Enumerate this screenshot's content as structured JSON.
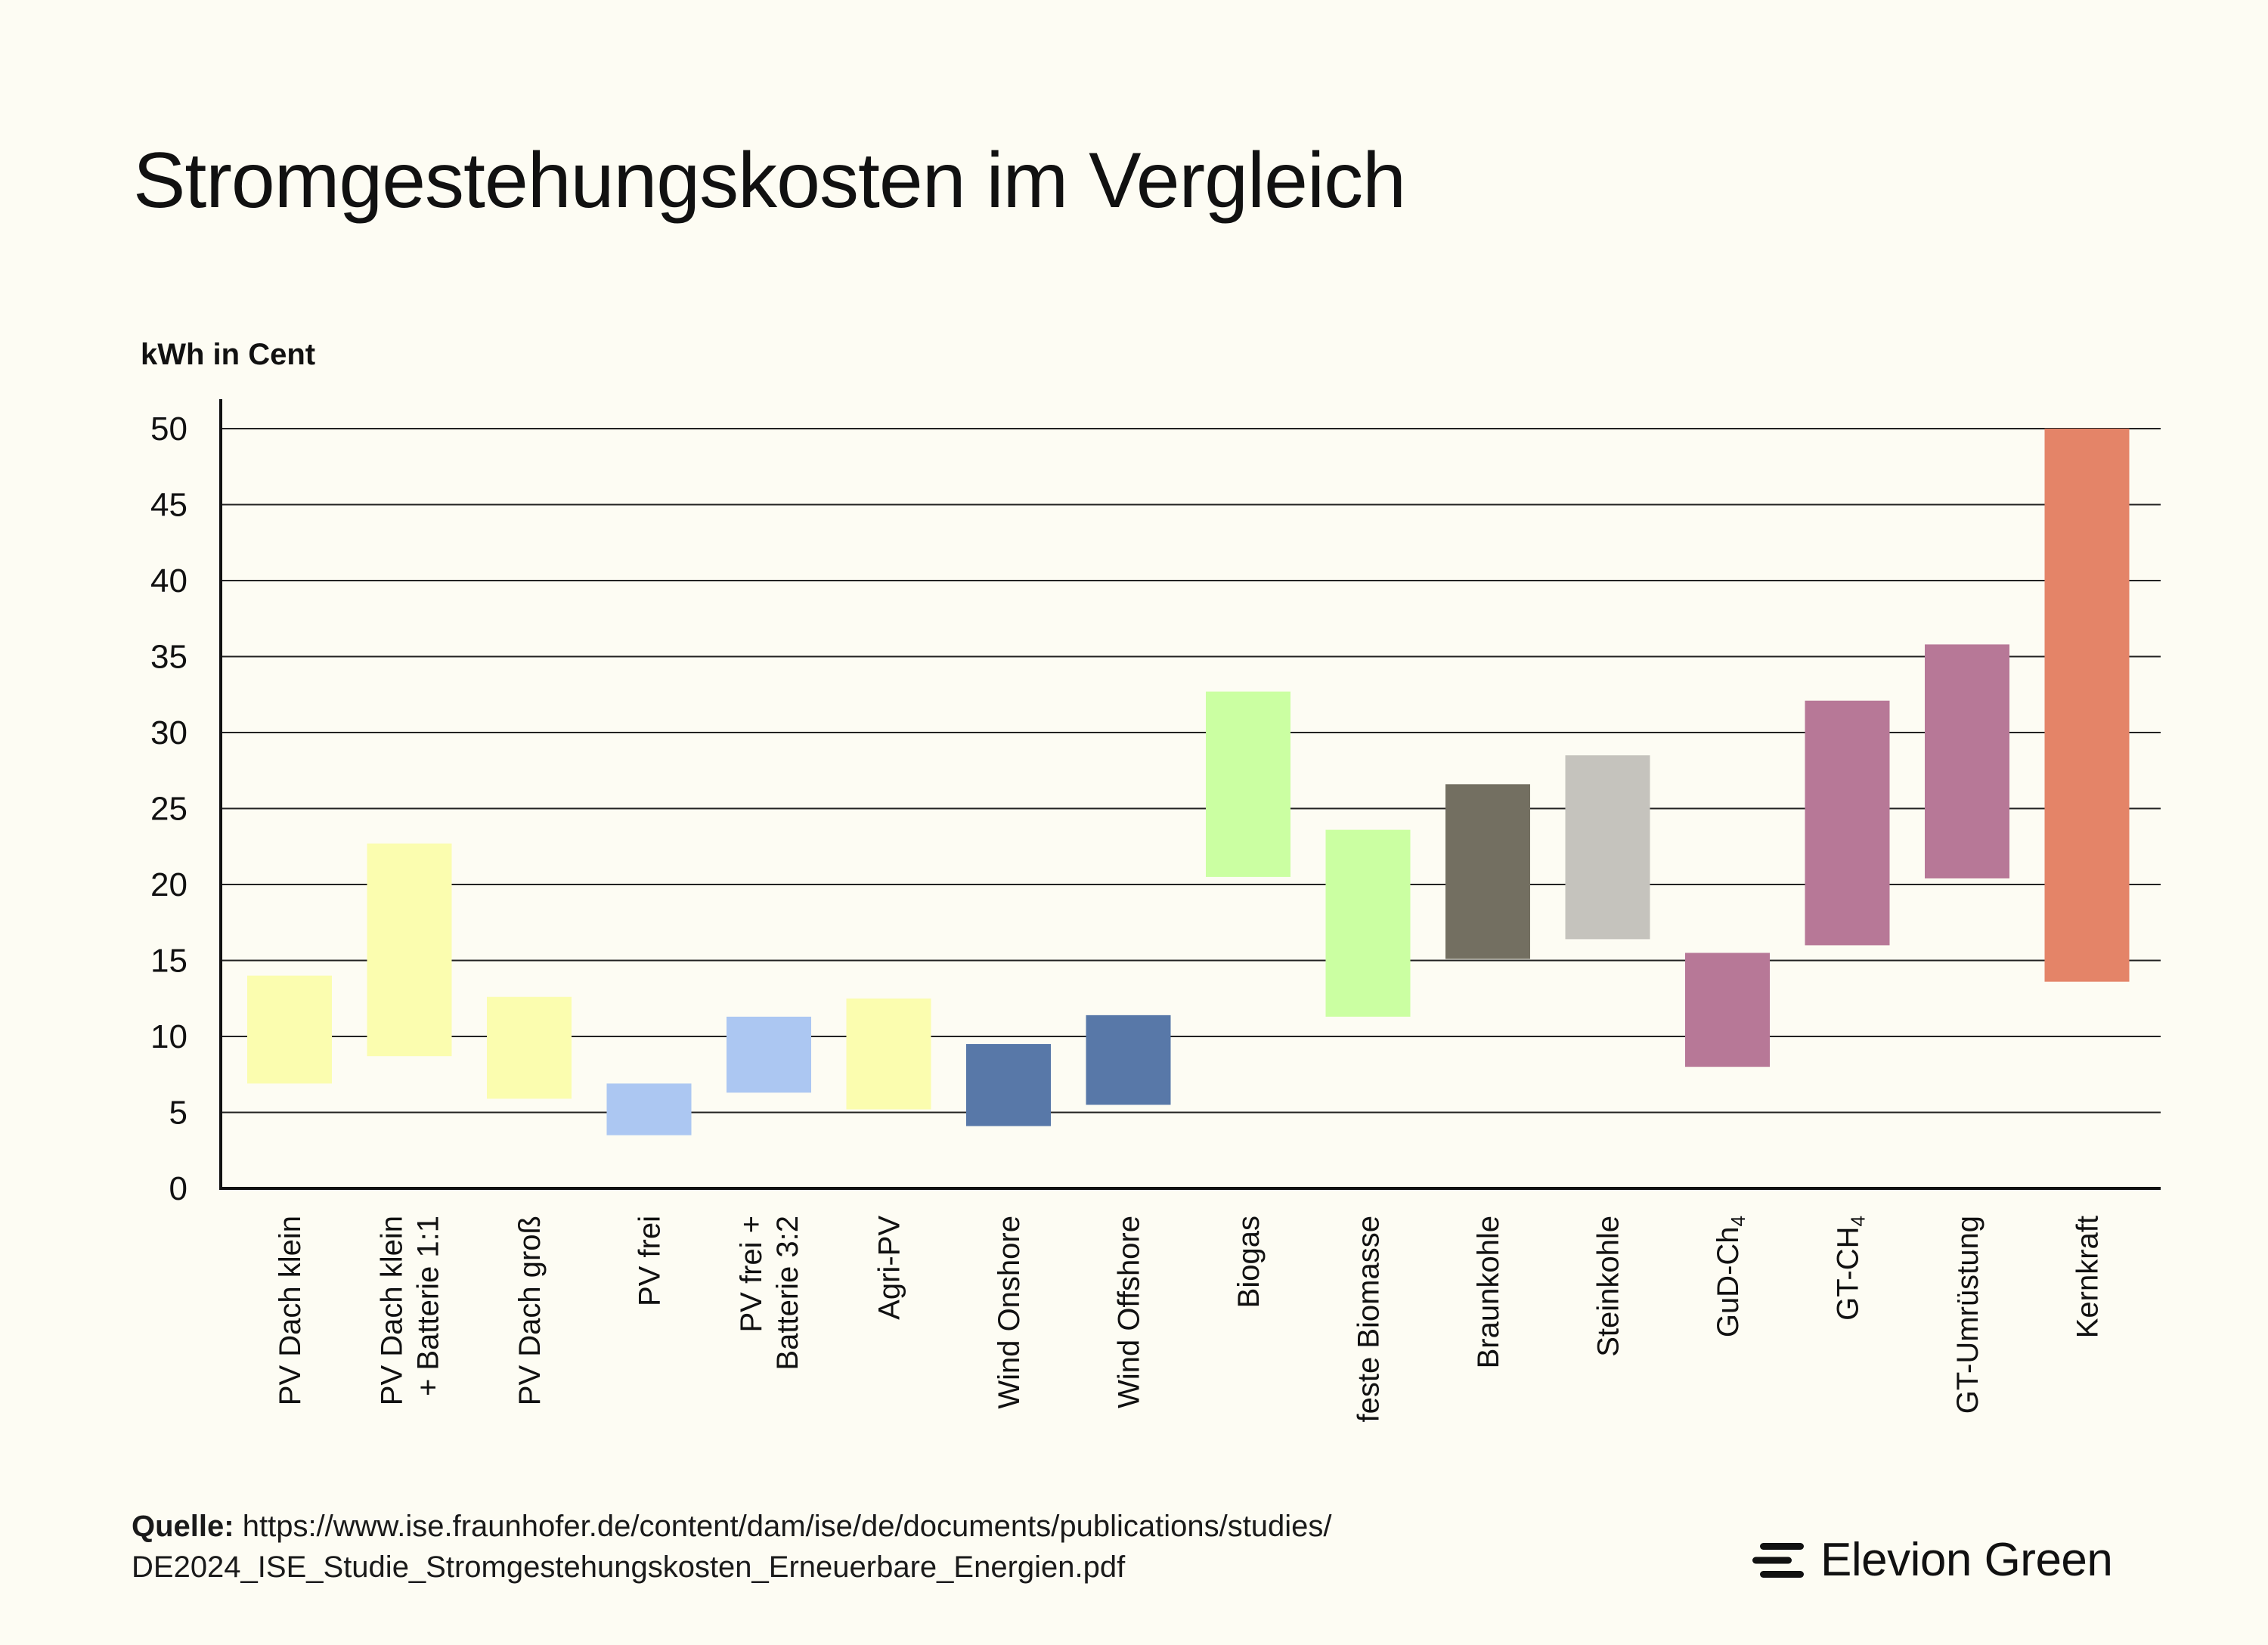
{
  "title": "Stromgestehungskosten im Vergleich",
  "chart_data": {
    "type": "bar",
    "subtype": "floating-range",
    "title": "Stromgestehungskosten im Vergleich",
    "ylabel": "kWh in Cent",
    "xlabel": "",
    "ylim": [
      0,
      50
    ],
    "yticks": [
      0,
      5,
      10,
      15,
      20,
      25,
      30,
      35,
      40,
      45,
      50
    ],
    "grid": true,
    "categories": [
      {
        "label": [
          "PV Dach klein"
        ],
        "low": 6.9,
        "high": 14.0,
        "color": "#fbfdaf"
      },
      {
        "label": [
          "PV Dach klein",
          "+ Batterie 1:1"
        ],
        "low": 8.7,
        "high": 22.7,
        "color": "#fbfdaf"
      },
      {
        "label": [
          "PV Dach groß"
        ],
        "low": 5.9,
        "high": 12.6,
        "color": "#fbfdaf"
      },
      {
        "label": [
          "PV frei"
        ],
        "low": 3.5,
        "high": 6.9,
        "color": "#acc7f2"
      },
      {
        "label": [
          "PV frei +",
          "Batterie 3:2"
        ],
        "low": 6.3,
        "high": 11.3,
        "color": "#acc7f2"
      },
      {
        "label": [
          "Agri-PV"
        ],
        "low": 5.2,
        "high": 12.5,
        "color": "#fbfdaf"
      },
      {
        "label": [
          "Wind Onshore"
        ],
        "low": 4.1,
        "high": 9.5,
        "color": "#5878a8"
      },
      {
        "label": [
          "Wind Offshore"
        ],
        "low": 5.5,
        "high": 11.4,
        "color": "#5878a8"
      },
      {
        "label": [
          "Biogas"
        ],
        "low": 20.5,
        "high": 32.7,
        "color": "#cbffa2"
      },
      {
        "label": [
          "feste Biomasse"
        ],
        "low": 11.3,
        "high": 23.6,
        "color": "#cbffa2"
      },
      {
        "label": [
          "Braunkohle"
        ],
        "low": 15.1,
        "high": 26.6,
        "color": "#736f61"
      },
      {
        "label": [
          "Steinkohle"
        ],
        "low": 16.4,
        "high": 28.5,
        "color": "#c5c3bd"
      },
      {
        "label": [
          "GuD-Ch",
          "4"
        ],
        "low": 8.0,
        "high": 15.5,
        "color": "#b77897",
        "subscript": true
      },
      {
        "label": [
          "GT-CH",
          "4"
        ],
        "low": 16.0,
        "high": 32.1,
        "color": "#b77897",
        "subscript": true
      },
      {
        "label": [
          "GT-Umrüstung"
        ],
        "low": 20.4,
        "high": 35.8,
        "color": "#b77897"
      },
      {
        "label": [
          "Kernkraft"
        ],
        "low": 13.6,
        "high": 50.0,
        "color": "#e48468"
      }
    ]
  },
  "source": {
    "label": "Quelle:",
    "line1": "https://www.ise.fraunhofer.de/content/dam/ise/de/documents/publications/studies/",
    "line2": "DE2024_ISE_Studie_Stromgestehungskosten_Erneuerbare_Energien.pdf"
  },
  "logo": {
    "text": "Elevion Green",
    "icon": "elevion-logo-icon"
  }
}
